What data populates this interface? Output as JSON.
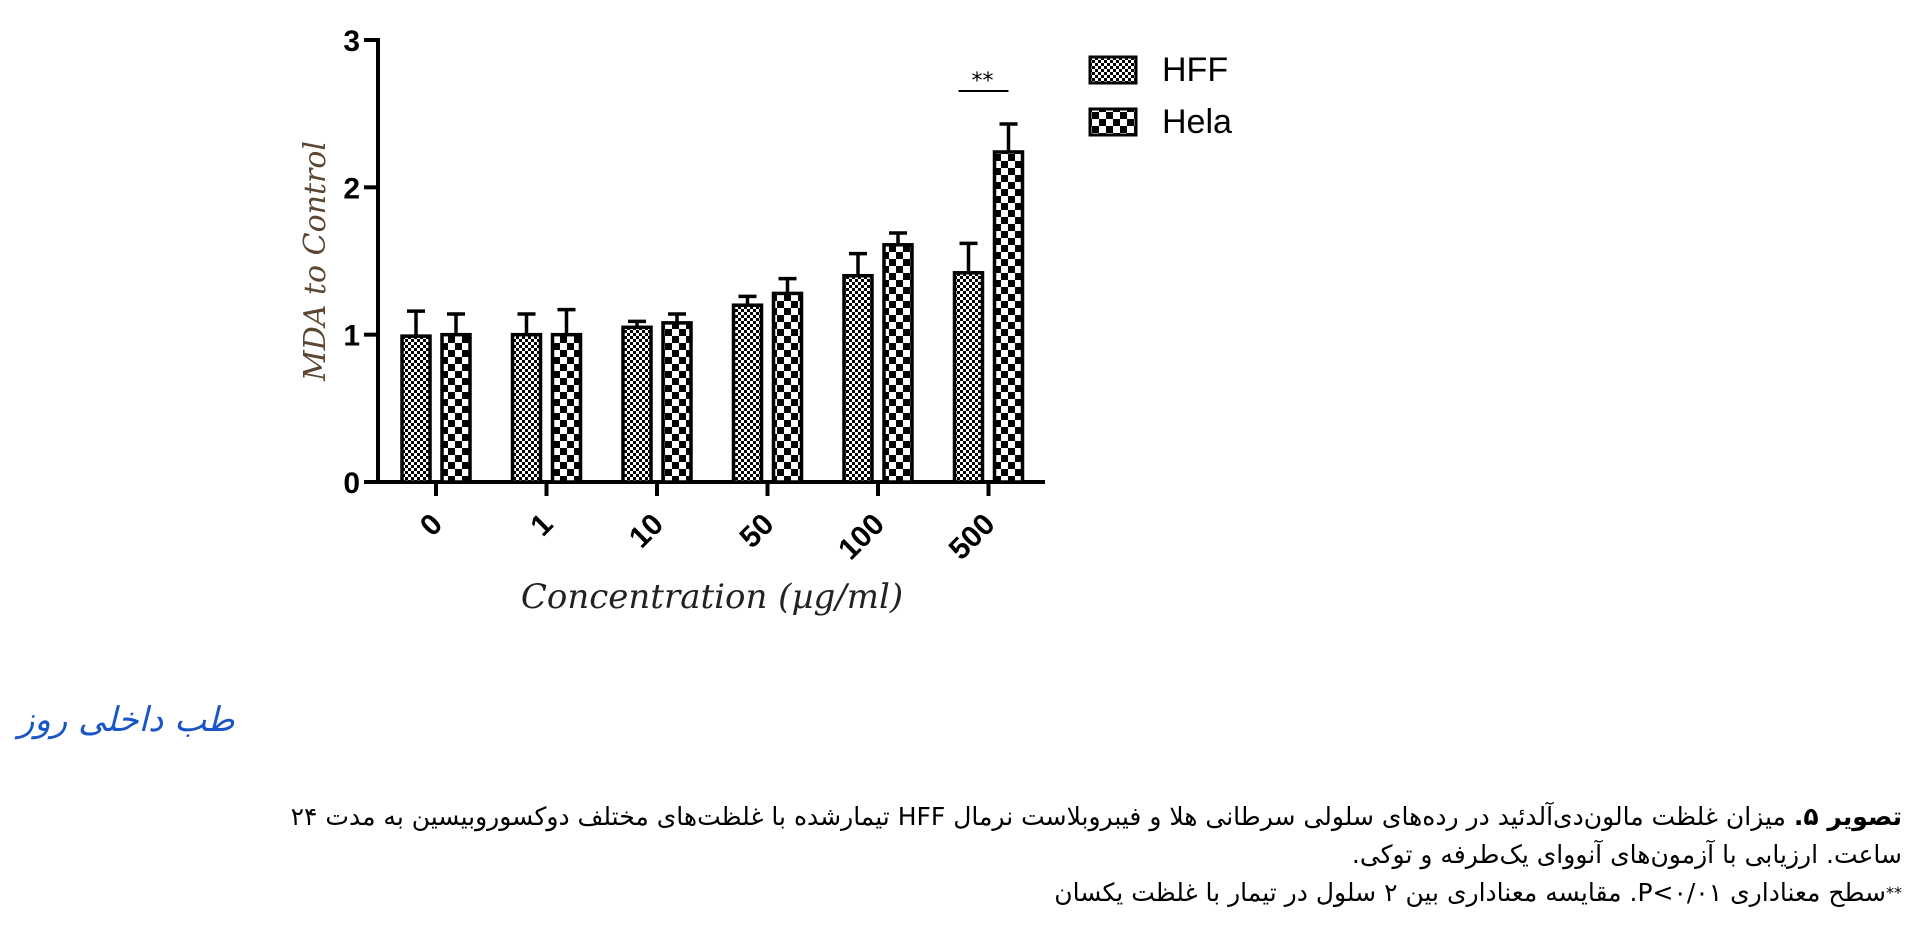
{
  "chart_data": {
    "type": "bar",
    "ylabel": "MDA to Control",
    "xlabel": "Concentration (µg/ml)",
    "categories": [
      "0",
      "1",
      "10",
      "50",
      "100",
      "500"
    ],
    "ylim": [
      0,
      3
    ],
    "yticks": [
      "0",
      "1",
      "2",
      "3"
    ],
    "legend_position": "top-right",
    "series": [
      {
        "name": "HFF",
        "values": [
          0.99,
          1.0,
          1.05,
          1.2,
          1.4,
          1.42
        ],
        "errors": [
          0.17,
          0.14,
          0.04,
          0.06,
          0.15,
          0.2
        ]
      },
      {
        "name": "Hela",
        "values": [
          1.0,
          1.0,
          1.08,
          1.28,
          1.61,
          2.24
        ],
        "errors": [
          0.14,
          0.17,
          0.06,
          0.1,
          0.08,
          0.19
        ]
      }
    ],
    "annotations": [
      {
        "category": "500",
        "text": "**"
      }
    ],
    "colors": {
      "axis": "#000000",
      "ylabel": "#5a4632",
      "bar_outline": "#000000"
    }
  },
  "watermark": "طب داخلی روز",
  "caption": {
    "figure_label": "تصویر ۵.",
    "line1_a": " میزان غلظت مالون‌دی‌آلدئید در رده‌های سلولی سرطانی هلا و فیبروبلاست نرمال ",
    "line1_b": "HFF",
    "line1_c": " تیمارشده با غلظت‌های مختلف دوکسوروبیسین به مدت ۲۴",
    "line2": "ساعت. ارزیابی با آزمون‌های آنووای یک‌طرفه و توکی.",
    "line3_mark": "**",
    "line3": "سطح معناداری P<۰/۰۱. مقایسه معناداری بین ۲ سلول در تیمار با غلظت یکسان"
  }
}
